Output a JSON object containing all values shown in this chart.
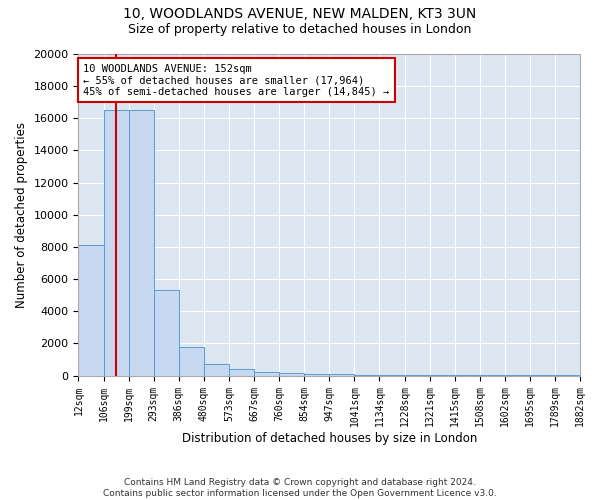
{
  "title1": "10, WOODLANDS AVENUE, NEW MALDEN, KT3 3UN",
  "title2": "Size of property relative to detached houses in London",
  "xlabel": "Distribution of detached houses by size in London",
  "ylabel": "Number of detached properties",
  "bar_values": [
    8100,
    16500,
    16500,
    5300,
    1800,
    700,
    400,
    200,
    150,
    100,
    80,
    60,
    50,
    40,
    30,
    25,
    20,
    15,
    10,
    8
  ],
  "bin_edges": [
    12,
    106,
    199,
    293,
    386,
    480,
    573,
    667,
    760,
    854,
    947,
    1041,
    1134,
    1228,
    1321,
    1415,
    1508,
    1602,
    1695,
    1789,
    1882
  ],
  "tick_labels": [
    "12sqm",
    "106sqm",
    "199sqm",
    "293sqm",
    "386sqm",
    "480sqm",
    "573sqm",
    "667sqm",
    "760sqm",
    "854sqm",
    "947sqm",
    "1041sqm",
    "1134sqm",
    "1228sqm",
    "1321sqm",
    "1415sqm",
    "1508sqm",
    "1602sqm",
    "1695sqm",
    "1789sqm",
    "1882sqm"
  ],
  "bar_color": "#c6d9f0",
  "bar_edge_color": "#5b9bd5",
  "property_size": 152,
  "red_line_color": "#cc0000",
  "annotation_text": "10 WOODLANDS AVENUE: 152sqm\n← 55% of detached houses are smaller (17,964)\n45% of semi-detached houses are larger (14,845) →",
  "annotation_box_color": "#ffffff",
  "annotation_border_color": "#cc0000",
  "ylim": [
    0,
    20000
  ],
  "footnote": "Contains HM Land Registry data © Crown copyright and database right 2024.\nContains public sector information licensed under the Open Government Licence v3.0.",
  "bg_color": "#ffffff",
  "plot_bg_color": "#dce6f1"
}
